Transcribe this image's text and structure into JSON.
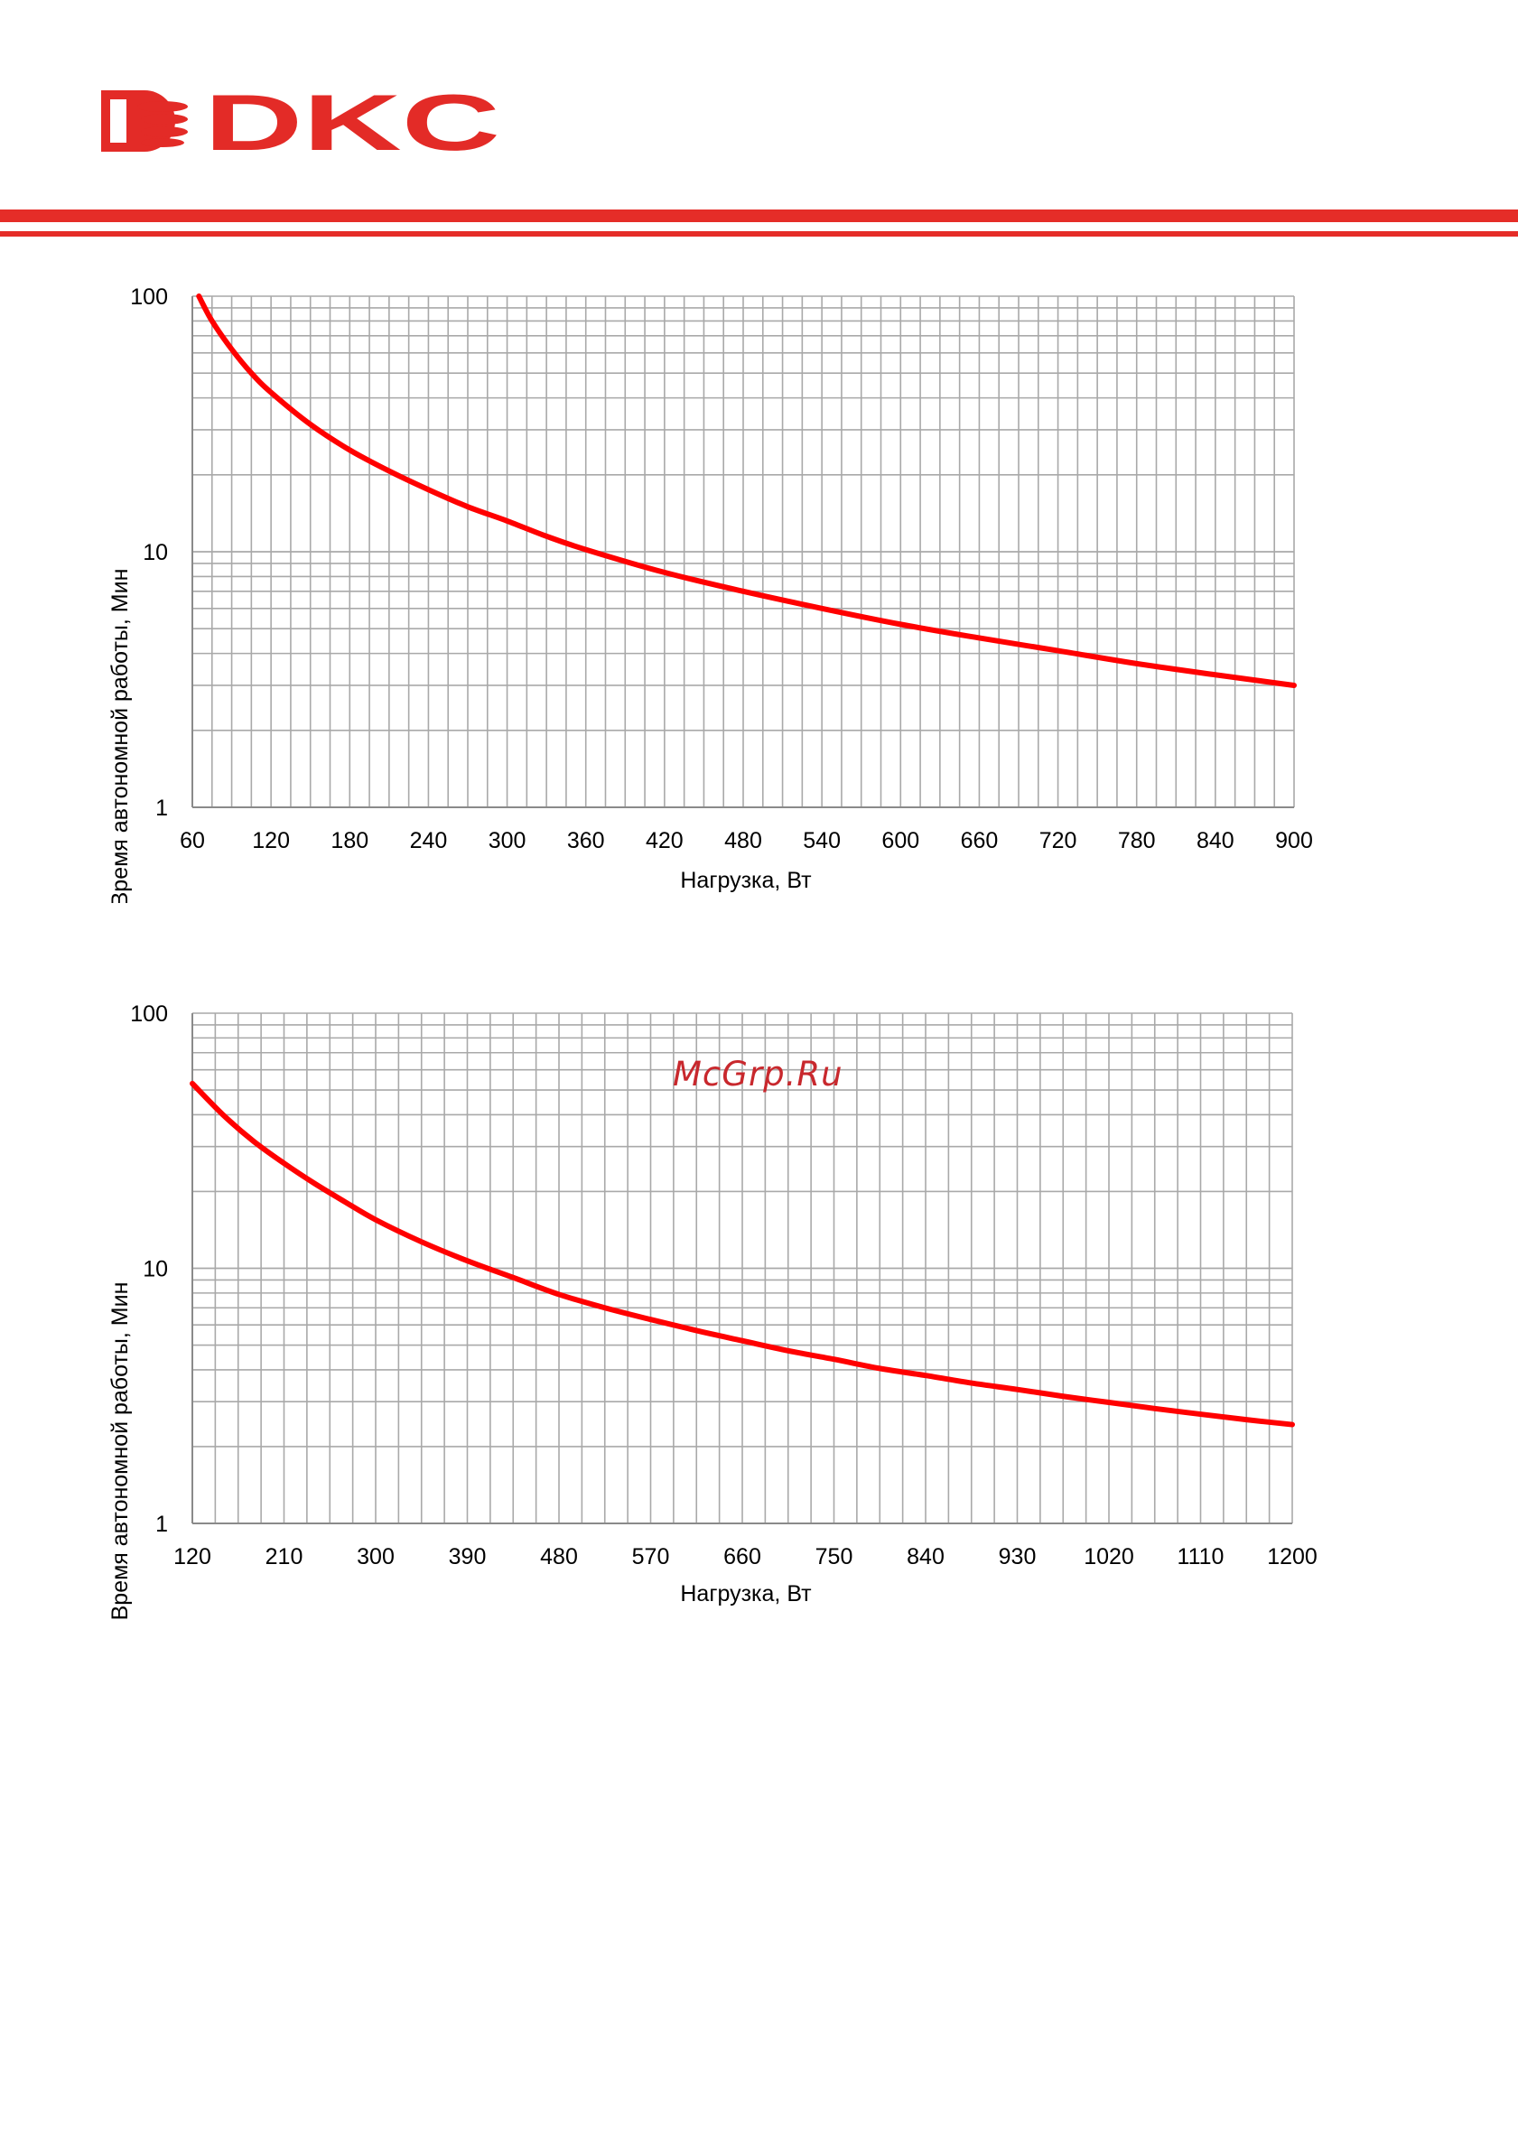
{
  "brand": {
    "name": "DKC",
    "color": "#e32b27"
  },
  "header": {
    "stripe_color": "#e52d28"
  },
  "watermark": {
    "text": "McGrp.Ru",
    "color": "#c8282d"
  },
  "chart_data": [
    {
      "type": "line",
      "title": "",
      "xlabel": "Нагрузка, Вт",
      "ylabel": "Время автономной работы, Мин",
      "yscale": "log",
      "xlim": [
        60,
        900
      ],
      "ylim": [
        1,
        100
      ],
      "xticks": [
        60,
        120,
        180,
        240,
        300,
        360,
        420,
        480,
        540,
        600,
        660,
        720,
        780,
        840,
        900
      ],
      "x_minor_step": 15,
      "yticks": [
        1,
        10,
        100
      ],
      "grid": true,
      "legend": "none",
      "series": [
        {
          "color": "#ff0000",
          "x": [
            65,
            75,
            90,
            105,
            120,
            150,
            180,
            210,
            240,
            270,
            300,
            330,
            360,
            420,
            480,
            540,
            600,
            660,
            720,
            780,
            840,
            900
          ],
          "y": [
            100,
            80,
            62,
            50,
            42,
            31.5,
            25,
            20.7,
            17.5,
            15,
            13.2,
            11.5,
            10.2,
            8.3,
            7,
            6,
            5.2,
            4.6,
            4.1,
            3.65,
            3.3,
            3.0
          ]
        }
      ]
    },
    {
      "type": "line",
      "title": "",
      "xlabel": "Нагрузка, Вт",
      "ylabel": "Время автономной работы, Мин",
      "yscale": "log",
      "xlim": [
        120,
        1200
      ],
      "ylim": [
        1,
        100
      ],
      "xticks": [
        120,
        210,
        300,
        390,
        480,
        570,
        660,
        750,
        840,
        930,
        1020,
        1110,
        1200
      ],
      "x_minor_step": 22.5,
      "yticks": [
        1,
        10,
        100
      ],
      "grid": true,
      "legend": "none",
      "series": [
        {
          "color": "#ff0000",
          "x": [
            120,
            150,
            180,
            210,
            240,
            270,
            300,
            345,
            390,
            435,
            480,
            525,
            570,
            615,
            660,
            705,
            750,
            795,
            840,
            885,
            930,
            975,
            1020,
            1065,
            1110,
            1155,
            1200
          ],
          "y": [
            53,
            40,
            31.5,
            25.8,
            21.5,
            18.2,
            15.5,
            12.7,
            10.7,
            9.2,
            7.9,
            7.0,
            6.3,
            5.7,
            5.2,
            4.75,
            4.4,
            4.05,
            3.8,
            3.55,
            3.35,
            3.15,
            2.98,
            2.82,
            2.68,
            2.55,
            2.44
          ]
        }
      ]
    }
  ]
}
